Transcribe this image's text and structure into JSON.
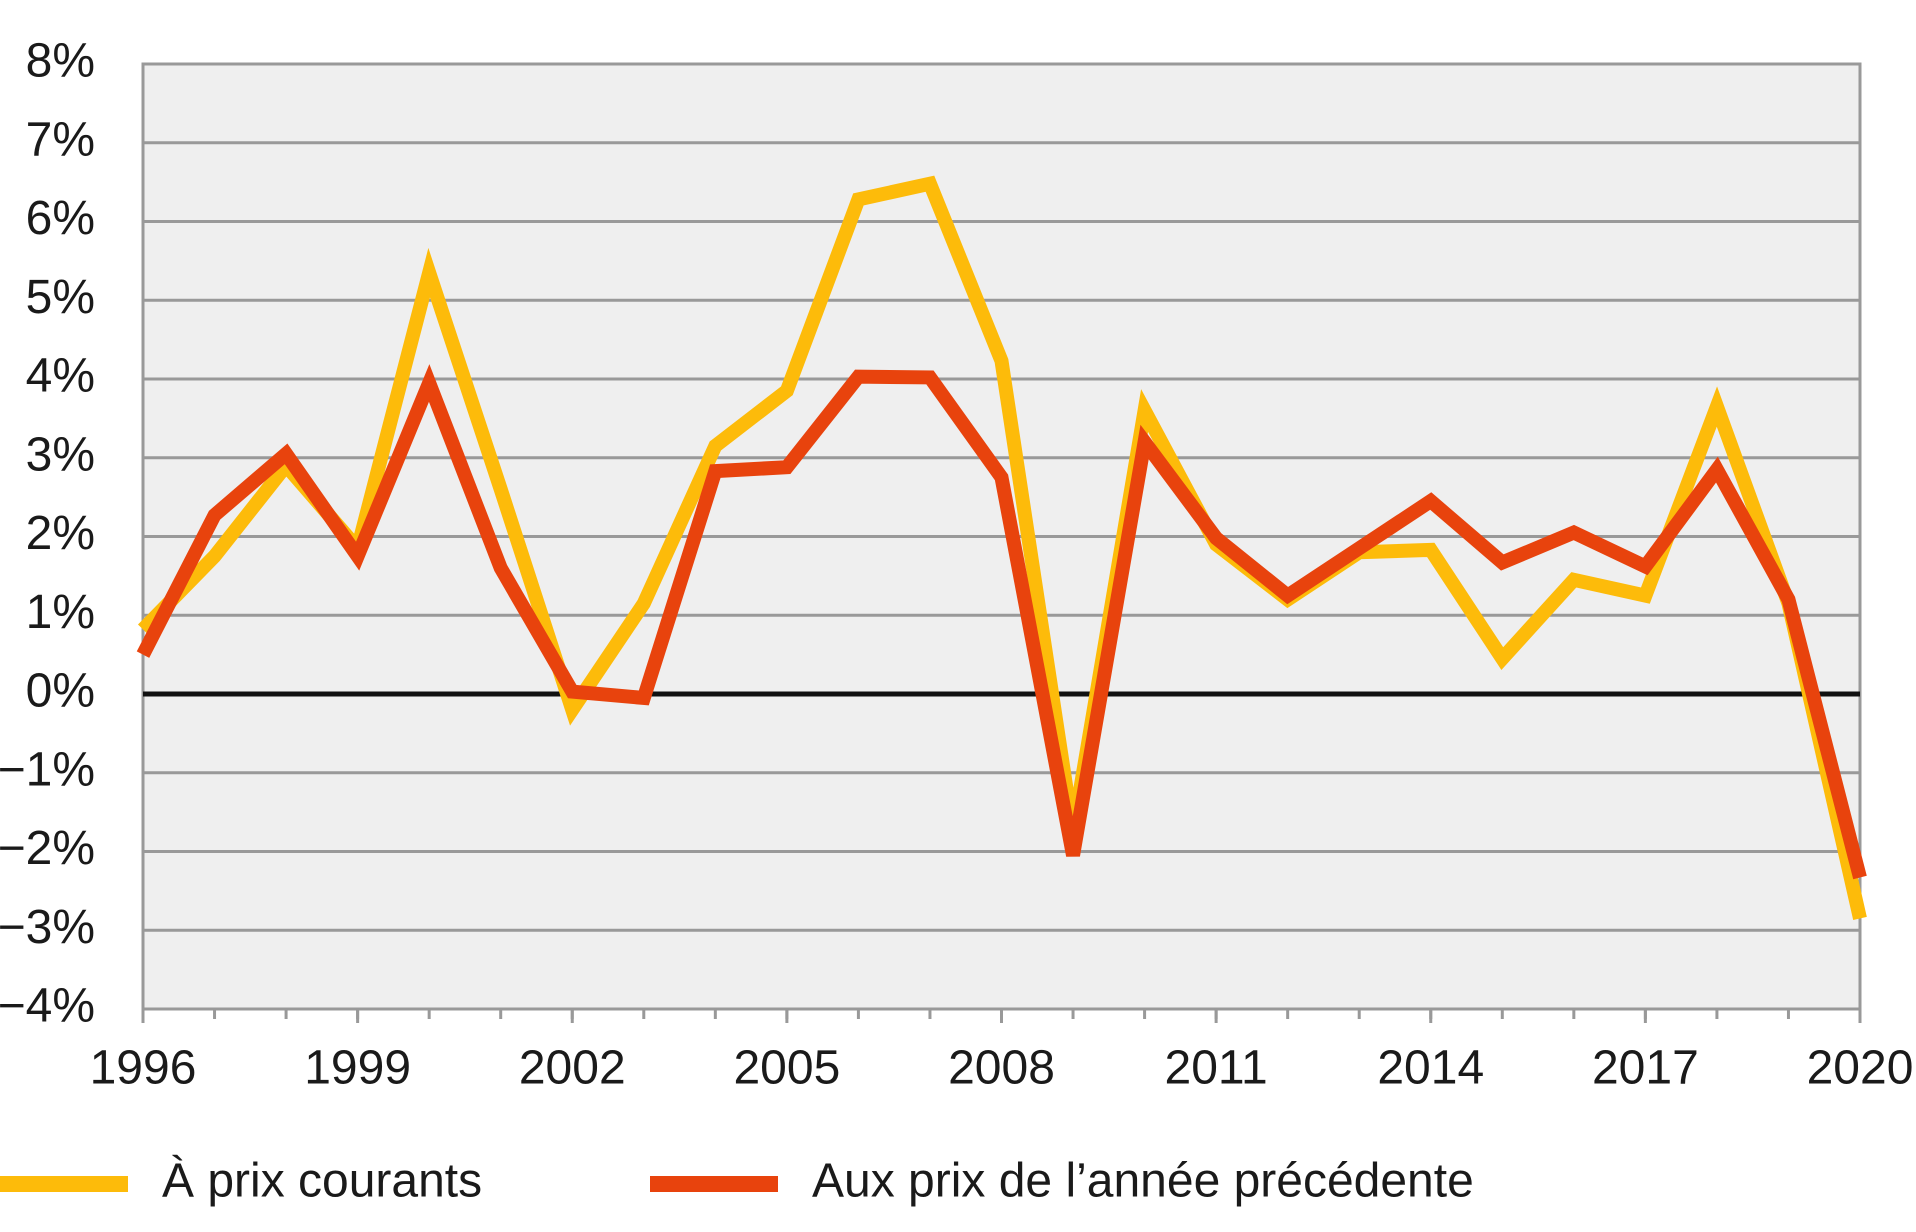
{
  "chart_data": {
    "type": "line",
    "x": [
      1996,
      1997,
      1998,
      1999,
      2000,
      2001,
      2002,
      2003,
      2004,
      2005,
      2006,
      2007,
      2008,
      2009,
      2010,
      2011,
      2012,
      2013,
      2014,
      2015,
      2016,
      2017,
      2018,
      2019,
      2020
    ],
    "series": [
      {
        "name": "À prix courants",
        "color": "#fdbb0a",
        "values": [
          0.82,
          1.75,
          2.9,
          1.85,
          5.35,
          2.6,
          -0.2,
          1.15,
          3.15,
          3.85,
          6.28,
          6.48,
          4.23,
          -1.75,
          3.6,
          1.9,
          1.2,
          1.8,
          1.83,
          0.45,
          1.45,
          1.25,
          3.65,
          1.15,
          -2.85
        ]
      },
      {
        "name": "Aux prix de l’année précédente",
        "color": "#e8430d",
        "values": [
          0.5,
          2.27,
          3.05,
          1.75,
          3.95,
          1.6,
          0.03,
          -0.05,
          2.83,
          2.88,
          4.03,
          4.02,
          2.75,
          -2.05,
          3.2,
          1.98,
          1.25,
          1.85,
          2.45,
          1.67,
          2.05,
          1.62,
          2.85,
          1.2,
          -2.33
        ]
      }
    ],
    "xlim": [
      1996,
      2020
    ],
    "xticks": [
      1996,
      1999,
      2002,
      2005,
      2008,
      2011,
      2014,
      2017,
      2020
    ],
    "ylim": [
      -4,
      8
    ],
    "yticks": [
      {
        "value": -4,
        "label": "−4%"
      },
      {
        "value": -3,
        "label": "−3%"
      },
      {
        "value": -2,
        "label": "−2%"
      },
      {
        "value": -1,
        "label": "−1%"
      },
      {
        "value": 0,
        "label": "0%"
      },
      {
        "value": 1,
        "label": "1%"
      },
      {
        "value": 2,
        "label": "2%"
      },
      {
        "value": 3,
        "label": "3%"
      },
      {
        "value": 4,
        "label": "4%"
      },
      {
        "value": 5,
        "label": "5%"
      },
      {
        "value": 6,
        "label": "6%"
      },
      {
        "value": 7,
        "label": "7%"
      },
      {
        "value": 8,
        "label": "8%"
      }
    ],
    "grid": true
  }
}
